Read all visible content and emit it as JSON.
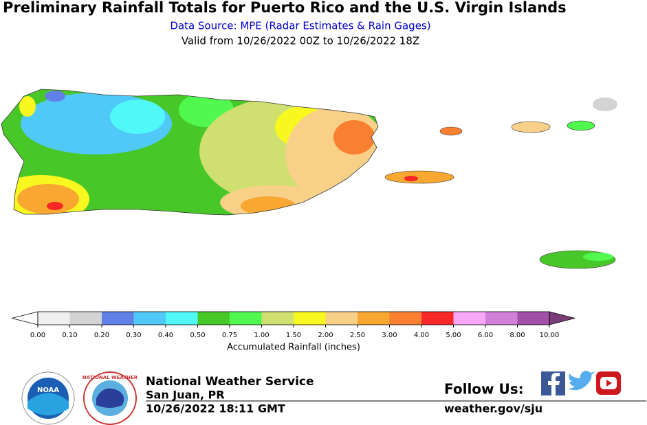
{
  "header": {
    "title": "Preliminary Rainfall Totals for Puerto Rico and the U.S. Virgin Islands",
    "subtitle": "Data Source: MPE (Radar Estimates & Rain Gages)",
    "valid": "Valid from 10/26/2022 00Z to 10/26/2022 18Z"
  },
  "legend": {
    "title": "Accumulated Rainfall (inches)",
    "ticks": [
      {
        "value": 0,
        "label": "0.00"
      },
      {
        "value": 0.1,
        "label": "0.10"
      },
      {
        "value": 0.2,
        "label": "0.20"
      },
      {
        "value": 0.3,
        "label": "0.30"
      },
      {
        "value": 0.4,
        "label": "0.40"
      },
      {
        "value": 0.5,
        "label": "0.50"
      },
      {
        "value": 0.75,
        "label": "0.75"
      },
      {
        "value": 1,
        "label": "1.00"
      },
      {
        "value": 1.5,
        "label": "1.50"
      },
      {
        "value": 2,
        "label": "2.00"
      },
      {
        "value": 2.5,
        "label": "2.50"
      },
      {
        "value": 3,
        "label": "3.00"
      },
      {
        "value": 4,
        "label": "4.00"
      },
      {
        "value": 5,
        "label": "5.00"
      },
      {
        "value": 6,
        "label": "6.00"
      },
      {
        "value": 8,
        "label": "8.00"
      },
      {
        "value": 10,
        "label": "10.00"
      }
    ],
    "colors": [
      "#f0f0f0",
      "#d3d3d3",
      "#6080e8",
      "#50c8f8",
      "#50f8f8",
      "#48c828",
      "#50f850",
      "#d0e070",
      "#f8f820",
      "#f8d088",
      "#f8a830",
      "#f88030",
      "#f82828",
      "#f8a8f8",
      "#d080d8",
      "#a050a8"
    ],
    "under_color": "#ffffff",
    "over_color": "#7a3d78"
  },
  "footer": {
    "noaa": "NOAA",
    "nws_ring": "NATIONAL WEATHER",
    "org": "National Weather Service",
    "office": "San Juan, PR",
    "timestamp": "10/26/2022 18:11 GMT",
    "follow": "Follow Us:",
    "url": "weather.gov/sju"
  }
}
